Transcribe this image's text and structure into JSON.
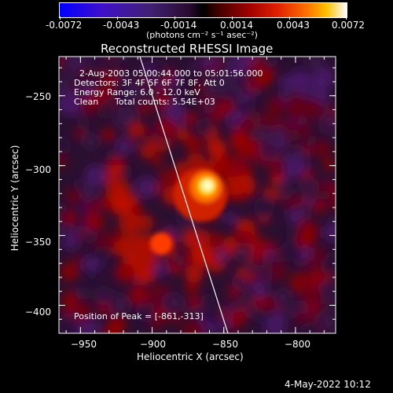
{
  "title": "Reconstructed RHESSI Image",
  "colorbar": {
    "tick_labels": [
      "-0.0072",
      "-0.0043",
      "-0.0014",
      "0.0014",
      "0.0043",
      "0.0072"
    ],
    "units_label": "(photons cm⁻² s⁻¹ asec⁻²)",
    "min": -0.0072,
    "max": 0.0072
  },
  "annotations": {
    "time_range": "2-Aug-2003 05:00:44.000 to 05:01:56.000",
    "detectors": "Detectors: 3F 4F 5F 6F 7F 8F, Att 0",
    "energy_range": "Energy Range: 6.0 - 12.0 keV",
    "clean": "Clean",
    "total_counts": "Total counts: 5.54E+03",
    "peak_position": "Position of Peak = [-861,-313]"
  },
  "axes": {
    "xlabel": "Heliocentric X (arcsec)",
    "ylabel": "Heliocentric Y (arcsec)",
    "x_ticks": [
      -950,
      -900,
      -850,
      -800
    ],
    "y_ticks": [
      -250,
      -300,
      -350,
      -400
    ],
    "x_tick_labels": [
      "−950",
      "−900",
      "−850",
      "−800"
    ],
    "y_tick_labels": [
      "−250",
      "−300",
      "−350",
      "−400"
    ],
    "xlim": [
      -965,
      -772
    ],
    "ylim": [
      -420,
      -222
    ]
  },
  "timestamp": "4-May-2022 10:12",
  "colors": {
    "background": "#000000",
    "limb_line": "#ffffff",
    "peak": "#ffff99"
  }
}
